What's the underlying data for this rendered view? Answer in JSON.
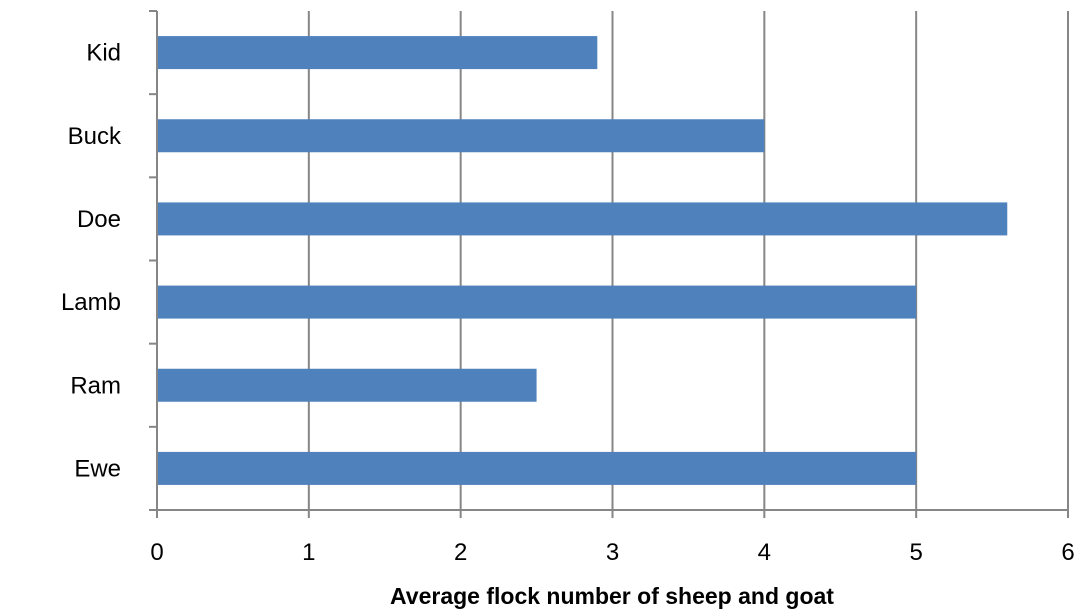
{
  "chart_data": {
    "type": "bar",
    "orientation": "horizontal",
    "categories": [
      "Kid",
      "Buck",
      "Doe",
      "Lamb",
      "Ram",
      "Ewe"
    ],
    "values": [
      2.9,
      4.0,
      5.6,
      5.0,
      2.5,
      5.0
    ],
    "title": "",
    "xlabel": "Average flock number of sheep and goat",
    "ylabel": "",
    "xlim": [
      0,
      6
    ],
    "xticks": [
      "0",
      "1",
      "2",
      "3",
      "4",
      "5",
      "6"
    ],
    "grid": "vertical major gridlines",
    "legend": "none",
    "colors": {
      "bar": "#4F81BD",
      "grid": "#868686",
      "axis": "#868686",
      "text": "#000000"
    }
  }
}
